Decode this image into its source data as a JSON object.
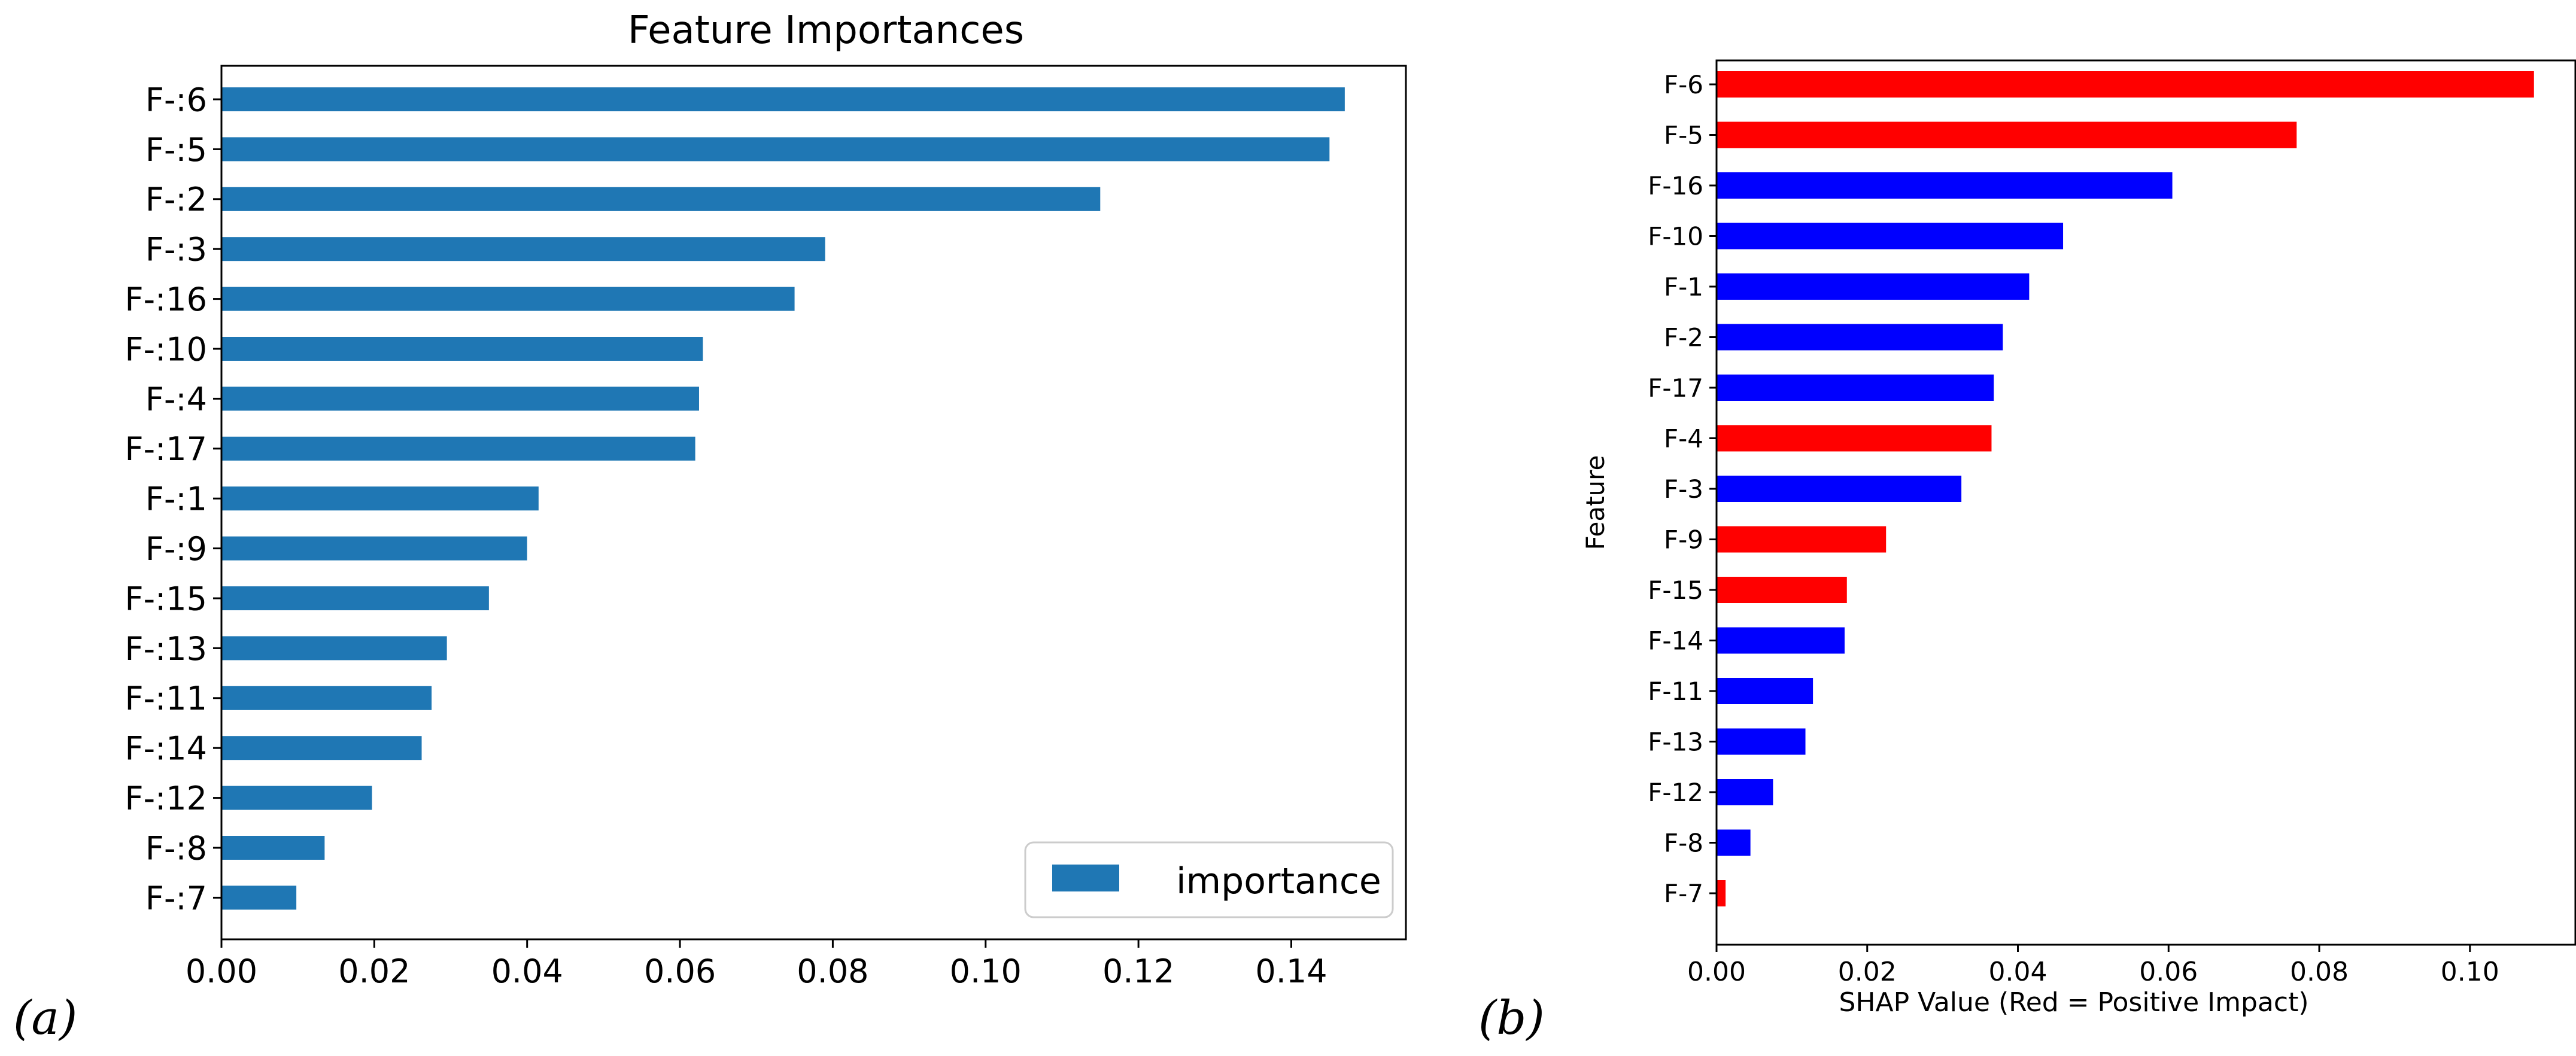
{
  "panels": {
    "a": "(a)",
    "b": "(b)"
  },
  "colors": {
    "bar_a": "#1f77b4",
    "positive": "#ff0000",
    "negative": "#0000ff"
  },
  "chart_data": [
    {
      "type": "bar",
      "orientation": "horizontal",
      "title": "Feature Importances",
      "xlabel": "",
      "ylabel": "",
      "xlim": [
        0,
        0.155
      ],
      "xticks": [
        "0.00",
        "0.02",
        "0.04",
        "0.06",
        "0.08",
        "0.10",
        "0.12",
        "0.14"
      ],
      "legend": {
        "label": "importance",
        "position": "lower-right"
      },
      "categories": [
        "F-:6",
        "F-:5",
        "F-:2",
        "F-:3",
        "F-:16",
        "F-:10",
        "F-:4",
        "F-:17",
        "F-:1",
        "F-:9",
        "F-:15",
        "F-:13",
        "F-:11",
        "F-:14",
        "F-:12",
        "F-:8",
        "F-:7"
      ],
      "values": [
        0.147,
        0.145,
        0.115,
        0.079,
        0.075,
        0.063,
        0.0625,
        0.062,
        0.0415,
        0.04,
        0.035,
        0.0295,
        0.0275,
        0.0262,
        0.0197,
        0.0135,
        0.0098
      ]
    },
    {
      "type": "bar",
      "orientation": "horizontal",
      "title": "",
      "xlabel": "SHAP Value (Red = Positive Impact)",
      "ylabel": "Feature",
      "xlim": [
        0,
        0.114
      ],
      "xticks": [
        "0.00",
        "0.02",
        "0.04",
        "0.06",
        "0.08",
        "0.10"
      ],
      "categories": [
        "F-6",
        "F-5",
        "F-16",
        "F-10",
        "F-1",
        "F-2",
        "F-17",
        "F-4",
        "F-3",
        "F-9",
        "F-15",
        "F-14",
        "F-11",
        "F-13",
        "F-12",
        "F-8",
        "F-7"
      ],
      "values": [
        0.1085,
        0.077,
        0.0605,
        0.046,
        0.0415,
        0.038,
        0.0368,
        0.0365,
        0.0325,
        0.0225,
        0.0173,
        0.017,
        0.0128,
        0.0118,
        0.0075,
        0.0045,
        0.0012
      ],
      "positive_impact": [
        true,
        true,
        false,
        false,
        false,
        false,
        false,
        true,
        false,
        true,
        true,
        false,
        false,
        false,
        false,
        false,
        true
      ]
    }
  ]
}
